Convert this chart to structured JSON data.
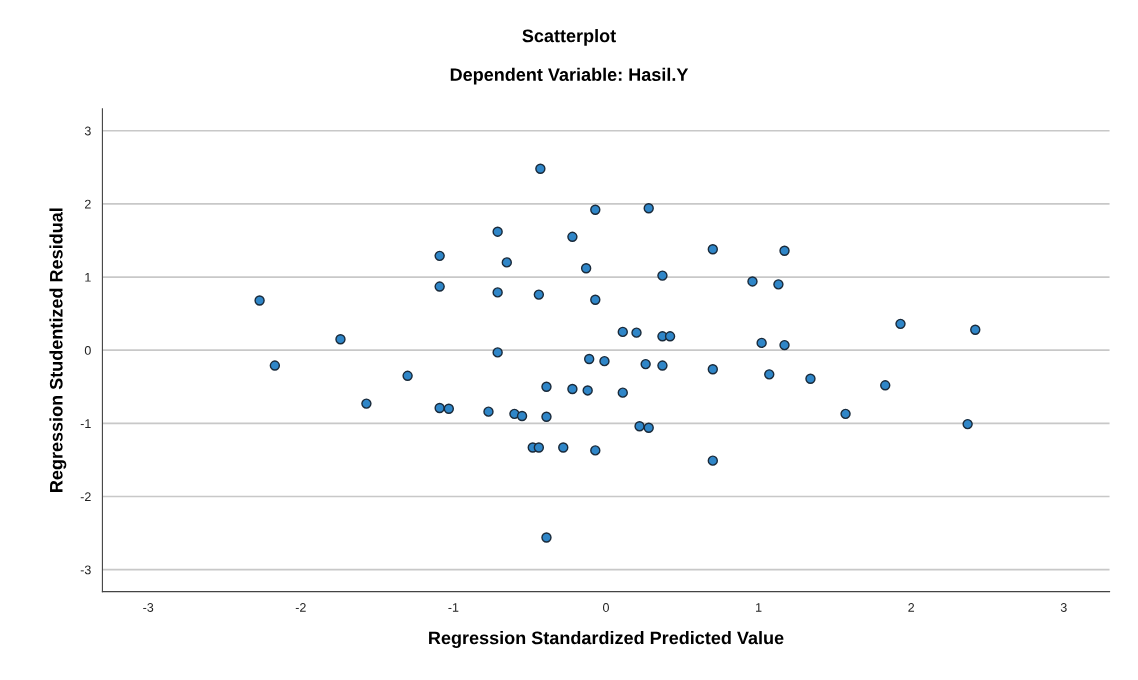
{
  "chart_data": {
    "type": "scatter",
    "title": "Scatterplot",
    "subtitle": "Dependent Variable: Hasil.Y",
    "xlabel": "Regression Standardized Predicted Value",
    "ylabel": "Regression Studentized Residual",
    "xlim": [
      -3.3,
      3.3
    ],
    "ylim": [
      -3.3,
      3.3
    ],
    "xticks": [
      -3,
      -2,
      -1,
      0,
      1,
      2,
      3
    ],
    "yticks": [
      -3,
      -2,
      -1,
      0,
      1,
      2,
      3
    ],
    "grid": "y",
    "marker": "circle",
    "series": [
      {
        "color": "#2f86c8",
        "x": [
          -2.27,
          -2.17,
          -1.74,
          -1.57,
          -1.3,
          -1.09,
          -1.09,
          -1.09,
          -1.03,
          -0.77,
          -0.71,
          -0.71,
          -0.71,
          -0.65,
          -0.6,
          -0.55,
          -0.48,
          -0.44,
          -0.44,
          -0.43,
          -0.39,
          -0.39,
          -0.39,
          -0.28,
          -0.22,
          -0.22,
          -0.13,
          -0.12,
          -0.11,
          -0.07,
          -0.07,
          -0.07,
          -0.01,
          0.11,
          0.11,
          0.2,
          0.22,
          0.26,
          0.28,
          0.28,
          0.37,
          0.37,
          0.37,
          0.42,
          0.7,
          0.7,
          0.7,
          0.96,
          1.02,
          1.13,
          1.17,
          1.17,
          1.07,
          1.34,
          1.57,
          1.83,
          1.93,
          2.37,
          2.42
        ],
        "values": [
          0.68,
          -0.21,
          0.15,
          -0.73,
          -0.35,
          1.29,
          0.87,
          -0.79,
          -0.8,
          -0.84,
          1.62,
          0.79,
          -0.03,
          1.2,
          -0.87,
          -0.9,
          -1.33,
          -1.33,
          0.76,
          2.48,
          -0.5,
          -0.91,
          -2.56,
          -1.33,
          1.55,
          -0.53,
          1.12,
          -0.55,
          -0.12,
          1.92,
          0.69,
          -1.37,
          -0.15,
          0.25,
          -0.58,
          0.24,
          -1.04,
          -0.19,
          1.94,
          -1.06,
          1.02,
          0.19,
          -0.21,
          0.19,
          1.38,
          -0.26,
          -1.51,
          0.94,
          0.1,
          0.9,
          1.36,
          0.07,
          -0.33,
          -0.39,
          -0.87,
          -0.48,
          0.36,
          -1.01,
          0.28
        ]
      }
    ]
  }
}
